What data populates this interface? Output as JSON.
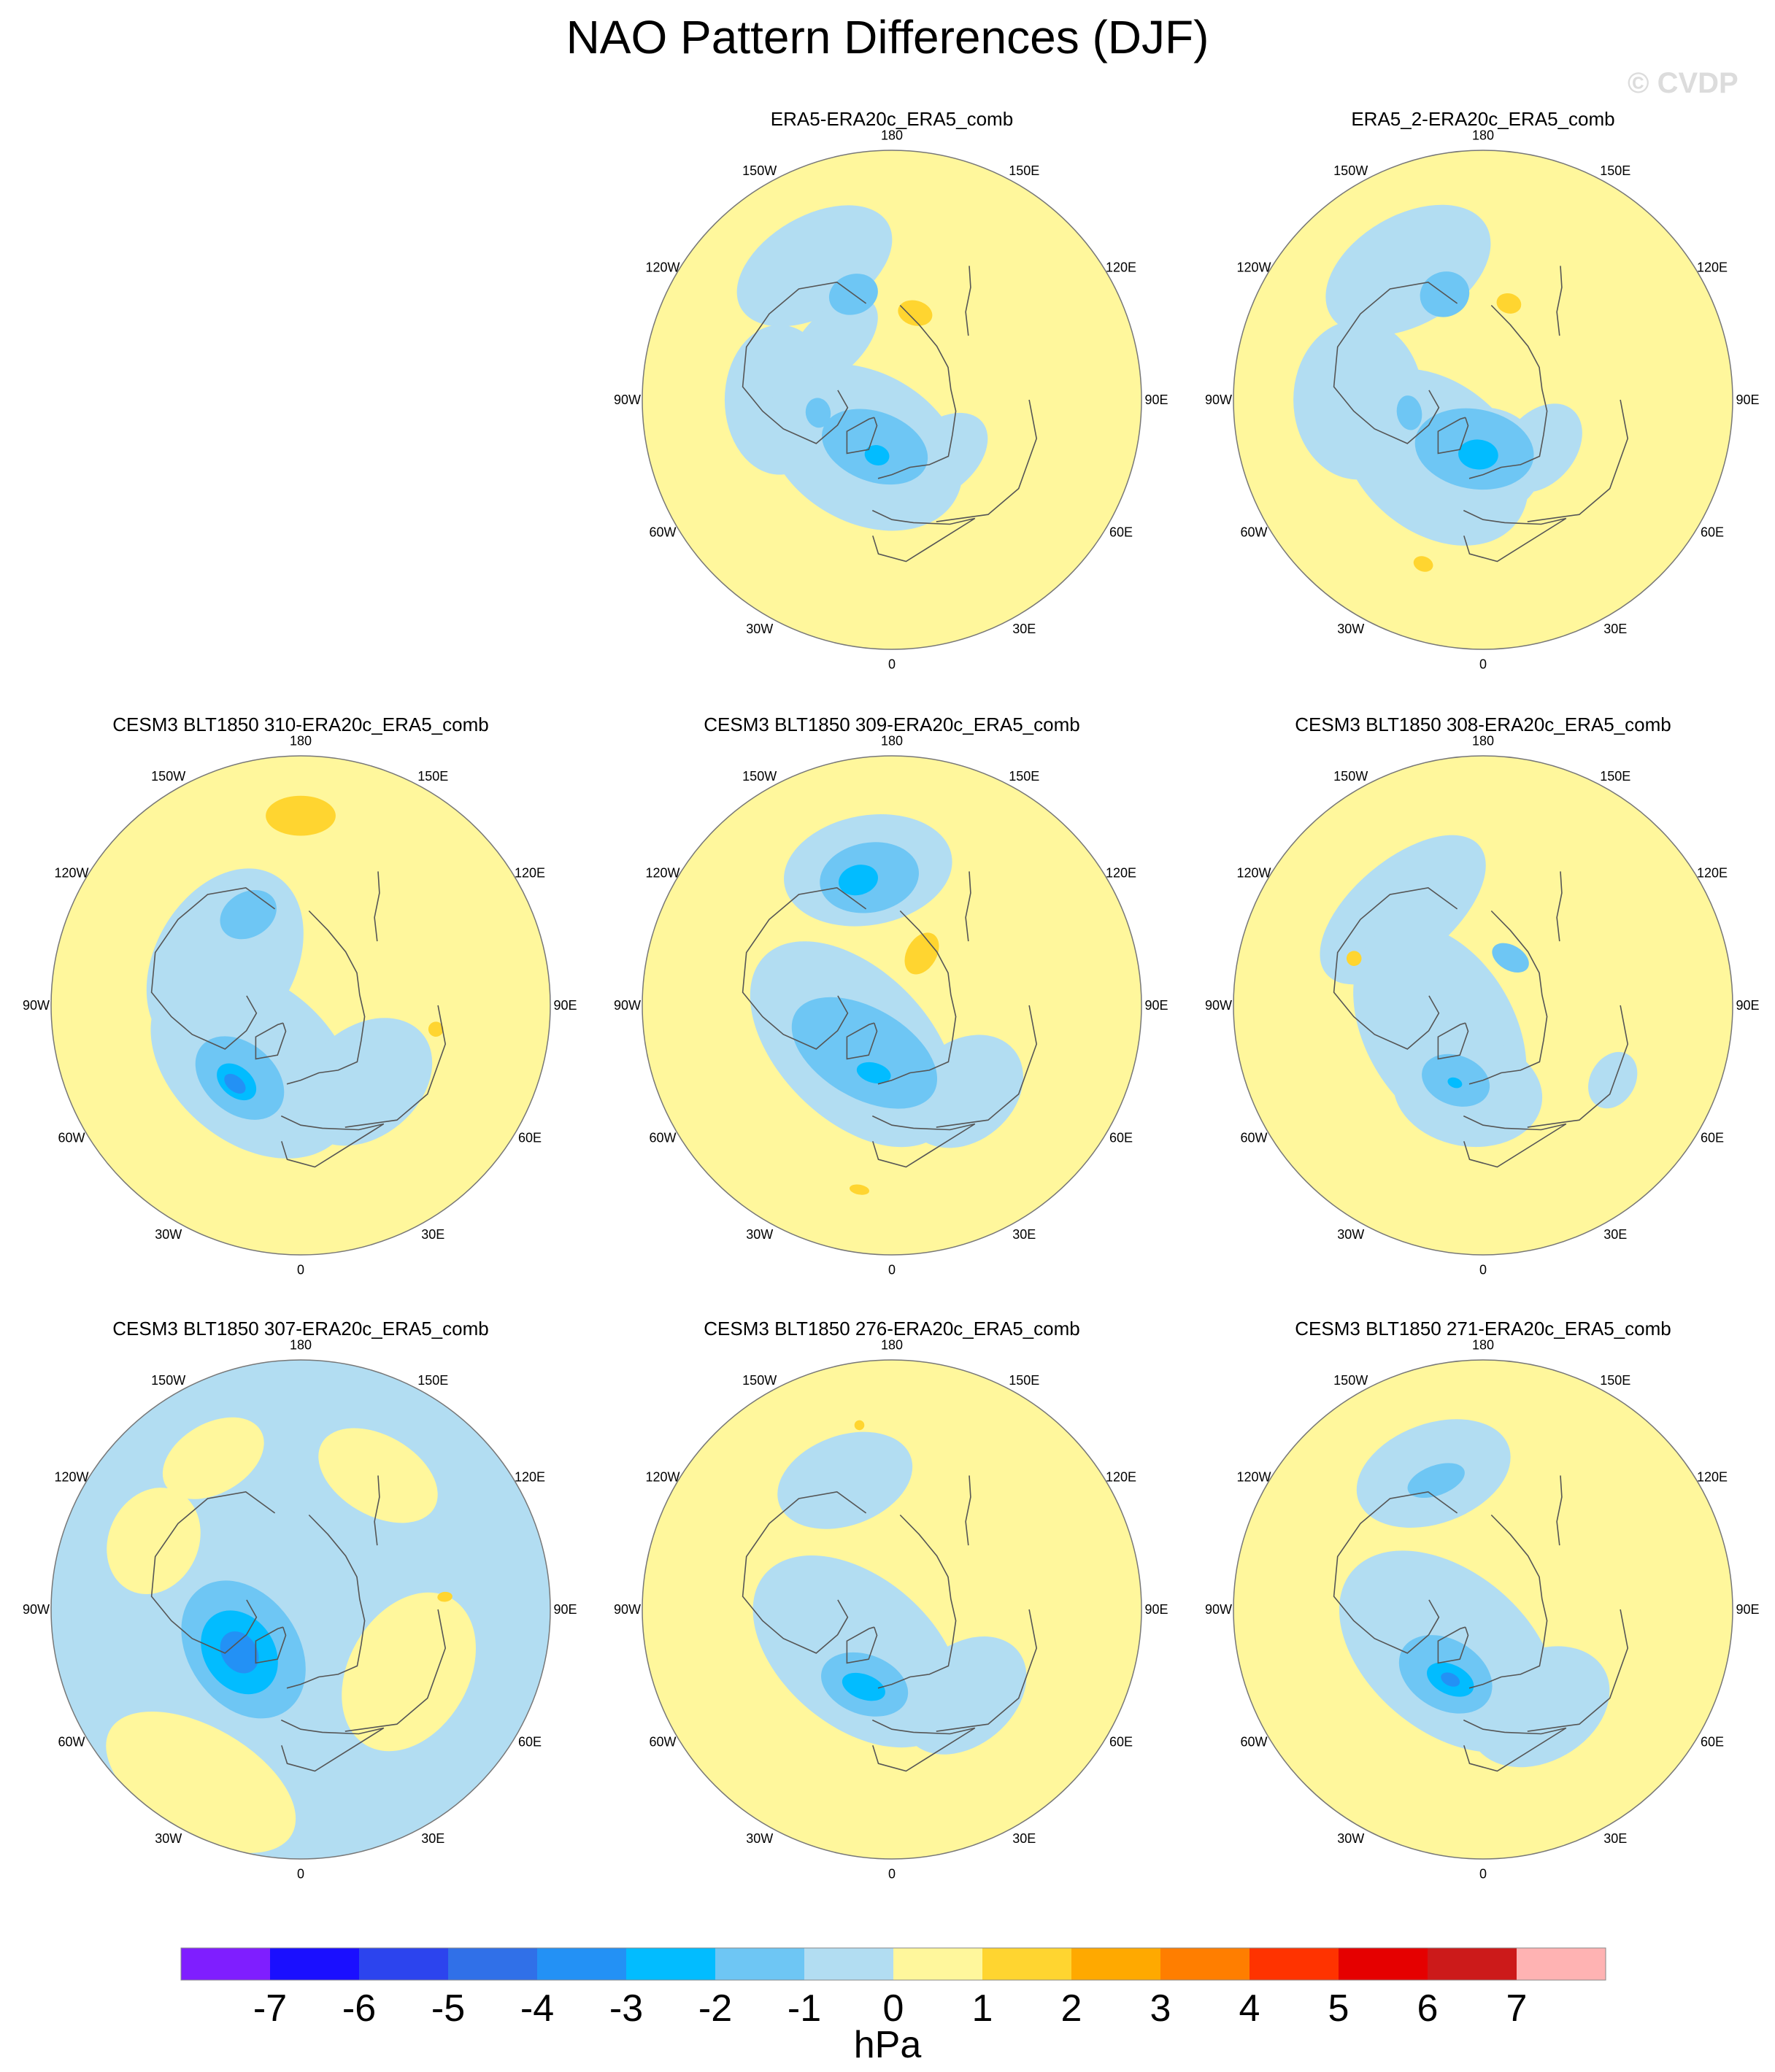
{
  "title": "NAO Pattern Differences (DJF)",
  "watermark": "© CVDP",
  "lon_labels": [
    "180",
    "150E",
    "120E",
    "90E",
    "60E",
    "30E",
    "0",
    "30W",
    "60W",
    "90W",
    "120W",
    "150W"
  ],
  "colors": {
    "-8": "#7f1eff",
    "-7": "#1a0fff",
    "-6": "#2c44ee",
    "-5": "#3070e8",
    "-4": "#2391f5",
    "-3": "#02bcff",
    "-2": "#6ec6f4",
    "-1": "#b2ddf2",
    "0": "#fff79c",
    "1": "#ffd530",
    "2": "#ffa900",
    "3": "#ff7e00",
    "4": "#ff3300",
    "5": "#e50000",
    "6": "#cc1a1a",
    "7": "#ffb3b3",
    "coast": "#555555",
    "edge": "#777777"
  },
  "chart_data": {
    "type": "contour-map",
    "projection": "north-polar-stereographic",
    "units": "hPa",
    "colorbar": {
      "ticks": [
        -7,
        -6,
        -5,
        -4,
        -3,
        -2,
        -1,
        0,
        1,
        2,
        3,
        4,
        5,
        6,
        7
      ],
      "tick_labels": [
        "-7",
        "-6",
        "-5",
        "-4",
        "-3",
        "-2",
        "-1",
        "0",
        "1",
        "2",
        "3",
        "4",
        "5",
        "6",
        "7"
      ],
      "units_label": "hPa"
    },
    "panels": [
      {
        "id": "p1",
        "title": "ERA5-ERA20c_ERA5_comb",
        "base": "pos",
        "features": [
          {
            "lon": -150,
            "r": 0.62,
            "a": 0.34,
            "b": 0.2,
            "level": "-1"
          },
          {
            "lon": -135,
            "r": 0.33,
            "a": 0.22,
            "b": 0.12,
            "level": "-1"
          },
          {
            "lon": -90,
            "r": 0.45,
            "a": 0.3,
            "b": 0.22,
            "level": "-1"
          },
          {
            "lon": -30,
            "r": 0.22,
            "a": 0.42,
            "b": 0.3,
            "level": "-1"
          },
          {
            "lon": 0,
            "r": 0.28,
            "a": 0.22,
            "b": 0.2,
            "level": "-1"
          },
          {
            "lon": 40,
            "r": 0.3,
            "a": 0.22,
            "b": 0.14,
            "level": "-1"
          },
          {
            "lon": -160,
            "r": 0.45,
            "a": 0.1,
            "b": 0.08,
            "level": "-2"
          },
          {
            "lon": -20,
            "r": 0.2,
            "a": 0.22,
            "b": 0.14,
            "level": "-2"
          },
          {
            "lon": -80,
            "r": 0.3,
            "a": 0.06,
            "b": 0.05,
            "level": "-2"
          },
          {
            "lon": -15,
            "r": 0.23,
            "a": 0.05,
            "b": 0.04,
            "level": "-3"
          },
          {
            "lon": 165,
            "r": 0.36,
            "a": 0.07,
            "b": 0.05,
            "level": "1"
          }
        ]
      },
      {
        "id": "p2",
        "title": "ERA5_2-ERA20c_ERA5_comb",
        "base": "pos",
        "features": [
          {
            "lon": -150,
            "r": 0.6,
            "a": 0.36,
            "b": 0.22,
            "level": "-1"
          },
          {
            "lon": -90,
            "r": 0.5,
            "a": 0.32,
            "b": 0.26,
            "level": "-1"
          },
          {
            "lon": -40,
            "r": 0.3,
            "a": 0.42,
            "b": 0.3,
            "level": "-1"
          },
          {
            "lon": 0,
            "r": 0.25,
            "a": 0.24,
            "b": 0.22,
            "level": "-1"
          },
          {
            "lon": 50,
            "r": 0.3,
            "a": 0.2,
            "b": 0.14,
            "level": "-1"
          },
          {
            "lon": -160,
            "r": 0.45,
            "a": 0.1,
            "b": 0.09,
            "level": "-2"
          },
          {
            "lon": -10,
            "r": 0.2,
            "a": 0.24,
            "b": 0.16,
            "level": "-2"
          },
          {
            "lon": -80,
            "r": 0.3,
            "a": 0.07,
            "b": 0.05,
            "level": "-2"
          },
          {
            "lon": -5,
            "r": 0.22,
            "a": 0.08,
            "b": 0.06,
            "level": "-3"
          },
          {
            "lon": 165,
            "r": 0.4,
            "a": 0.05,
            "b": 0.04,
            "level": "1"
          },
          {
            "lon": -20,
            "r": 0.7,
            "a": 0.04,
            "b": 0.03,
            "level": "1"
          }
        ]
      },
      {
        "id": "p3",
        "title": "CESM3 BLT1850 310-ERA20c_ERA5_comb",
        "base": "pos",
        "features": [
          {
            "lon": -120,
            "r": 0.35,
            "a": 0.4,
            "b": 0.28,
            "level": "-1"
          },
          {
            "lon": -40,
            "r": 0.3,
            "a": 0.46,
            "b": 0.32,
            "level": "-1"
          },
          {
            "lon": 40,
            "r": 0.4,
            "a": 0.3,
            "b": 0.22,
            "level": "-1"
          },
          {
            "lon": -150,
            "r": 0.42,
            "a": 0.12,
            "b": 0.09,
            "level": "-2"
          },
          {
            "lon": -40,
            "r": 0.38,
            "a": 0.2,
            "b": 0.14,
            "level": "-2"
          },
          {
            "lon": -40,
            "r": 0.4,
            "a": 0.09,
            "b": 0.06,
            "level": "-3"
          },
          {
            "lon": -40,
            "r": 0.41,
            "a": 0.05,
            "b": 0.03,
            "level": "-4"
          },
          {
            "lon": 180,
            "r": 0.76,
            "a": 0.14,
            "b": 0.08,
            "level": "1"
          },
          {
            "lon": 80,
            "r": 0.55,
            "a": 0.03,
            "b": 0.03,
            "level": "1"
          }
        ]
      },
      {
        "id": "p4",
        "title": "CESM3 BLT1850 309-ERA20c_ERA5_comb",
        "base": "pos",
        "features": [
          {
            "lon": -170,
            "r": 0.55,
            "a": 0.34,
            "b": 0.22,
            "level": "-1"
          },
          {
            "lon": -45,
            "r": 0.22,
            "a": 0.5,
            "b": 0.3,
            "level": "-1"
          },
          {
            "lon": 40,
            "r": 0.45,
            "a": 0.26,
            "b": 0.2,
            "level": "-1"
          },
          {
            "lon": -170,
            "r": 0.52,
            "a": 0.2,
            "b": 0.14,
            "level": "-2"
          },
          {
            "lon": -30,
            "r": 0.22,
            "a": 0.32,
            "b": 0.18,
            "level": "-2"
          },
          {
            "lon": -165,
            "r": 0.52,
            "a": 0.08,
            "b": 0.06,
            "level": "-3"
          },
          {
            "lon": -15,
            "r": 0.28,
            "a": 0.07,
            "b": 0.04,
            "level": "-3"
          },
          {
            "lon": 150,
            "r": 0.24,
            "a": 0.06,
            "b": 0.09,
            "level": "1"
          },
          {
            "lon": -10,
            "r": 0.75,
            "a": 0.04,
            "b": 0.02,
            "level": "1"
          }
        ]
      },
      {
        "id": "p5",
        "title": "CESM3 BLT1850 308-ERA20c_ERA5_comb",
        "base": "pos",
        "features": [
          {
            "lon": -140,
            "r": 0.5,
            "a": 0.4,
            "b": 0.2,
            "level": "-1"
          },
          {
            "lon": -60,
            "r": 0.2,
            "a": 0.46,
            "b": 0.3,
            "level": "-1"
          },
          {
            "lon": -10,
            "r": 0.35,
            "a": 0.3,
            "b": 0.22,
            "level": "-1"
          },
          {
            "lon": 60,
            "r": 0.6,
            "a": 0.12,
            "b": 0.09,
            "level": "-1"
          },
          {
            "lon": -20,
            "r": 0.32,
            "a": 0.14,
            "b": 0.1,
            "level": "-2"
          },
          {
            "lon": 150,
            "r": 0.22,
            "a": 0.08,
            "b": 0.05,
            "level": "-2"
          },
          {
            "lon": -20,
            "r": 0.33,
            "a": 0.03,
            "b": 0.02,
            "level": "-3"
          },
          {
            "lon": -110,
            "r": 0.55,
            "a": 0.03,
            "b": 0.03,
            "level": "1"
          }
        ]
      },
      {
        "id": "p6",
        "title": "CESM3 BLT1850 307-ERA20c_ERA5_comb",
        "base": "neg",
        "features": [
          {
            "lon": -150,
            "r": 0.7,
            "a": 0.22,
            "b": 0.14,
            "level": "0"
          },
          {
            "lon": -115,
            "r": 0.65,
            "a": 0.22,
            "b": 0.18,
            "level": "0"
          },
          {
            "lon": 150,
            "r": 0.62,
            "a": 0.26,
            "b": 0.16,
            "level": "0"
          },
          {
            "lon": 60,
            "r": 0.5,
            "a": 0.34,
            "b": 0.24,
            "level": "0"
          },
          {
            "lon": -30,
            "r": 0.8,
            "a": 0.42,
            "b": 0.22,
            "level": "0"
          },
          {
            "lon": -55,
            "r": 0.28,
            "a": 0.3,
            "b": 0.22,
            "level": "-2"
          },
          {
            "lon": -55,
            "r": 0.3,
            "a": 0.18,
            "b": 0.14,
            "level": "-3"
          },
          {
            "lon": -55,
            "r": 0.3,
            "a": 0.09,
            "b": 0.07,
            "level": "-4"
          },
          {
            "lon": 95,
            "r": 0.58,
            "a": 0.02,
            "b": 0.03,
            "level": "1"
          }
        ]
      },
      {
        "id": "p7",
        "title": "CESM3 BLT1850 276-ERA20c_ERA5_comb",
        "base": "pos",
        "features": [
          {
            "lon": -160,
            "r": 0.55,
            "a": 0.28,
            "b": 0.18,
            "level": "-1"
          },
          {
            "lon": -40,
            "r": 0.22,
            "a": 0.48,
            "b": 0.3,
            "level": "-1"
          },
          {
            "lon": 40,
            "r": 0.45,
            "a": 0.28,
            "b": 0.2,
            "level": "-1"
          },
          {
            "lon": -20,
            "r": 0.32,
            "a": 0.18,
            "b": 0.12,
            "level": "-2"
          },
          {
            "lon": -20,
            "r": 0.33,
            "a": 0.09,
            "b": 0.05,
            "level": "-3"
          },
          {
            "lon": -170,
            "r": 0.75,
            "a": 0.02,
            "b": 0.02,
            "level": "1"
          }
        ]
      },
      {
        "id": "p8",
        "title": "CESM3 BLT1850 271-ERA20c_ERA5_comb",
        "base": "pos",
        "features": [
          {
            "lon": -160,
            "r": 0.58,
            "a": 0.32,
            "b": 0.2,
            "level": "-1"
          },
          {
            "lon": -40,
            "r": 0.22,
            "a": 0.5,
            "b": 0.32,
            "level": "-1"
          },
          {
            "lon": 30,
            "r": 0.45,
            "a": 0.3,
            "b": 0.22,
            "level": "-1"
          },
          {
            "lon": -160,
            "r": 0.55,
            "a": 0.12,
            "b": 0.06,
            "level": "-2"
          },
          {
            "lon": -30,
            "r": 0.3,
            "a": 0.2,
            "b": 0.14,
            "level": "-2"
          },
          {
            "lon": -25,
            "r": 0.31,
            "a": 0.1,
            "b": 0.06,
            "level": "-3"
          },
          {
            "lon": -25,
            "r": 0.31,
            "a": 0.04,
            "b": 0.025,
            "level": "-4"
          }
        ]
      }
    ]
  }
}
